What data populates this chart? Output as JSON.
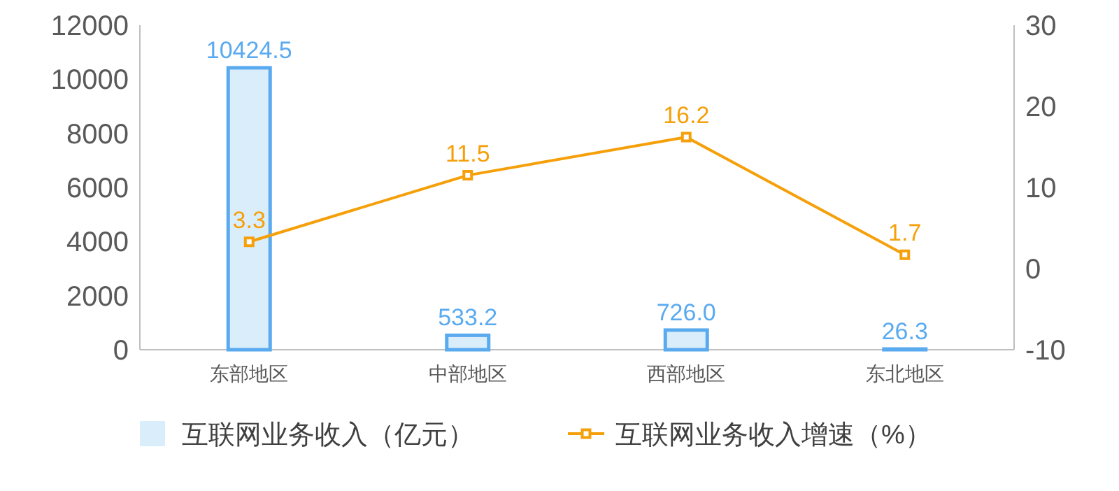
{
  "chart_data": {
    "type": "bar",
    "categories": [
      "东部地区",
      "中部地区",
      "西部地区",
      "东北地区"
    ],
    "series": [
      {
        "name": "互联网业务收入（亿元）",
        "color": "#d9edfb",
        "values": [
          10424.5,
          533.2,
          726.0,
          26.3
        ],
        "value_labels": [
          "10424.5",
          "533.2",
          "726.0",
          "26.3"
        ]
      },
      {
        "name": "互联网业务收入增速（%）",
        "type": "line",
        "axis": "y2",
        "color": "#f5a00a",
        "values": [
          3.3,
          11.5,
          16.2,
          1.7
        ],
        "marker": "square",
        "line_style": "solid"
      }
    ],
    "ylim": [
      0,
      12000
    ],
    "yticks": [
      0,
      2000,
      4000,
      6000,
      8000,
      10000,
      12000
    ],
    "y2lim": [
      -10,
      30
    ],
    "y2ticks": [
      -10,
      0,
      10,
      20,
      30
    ],
    "data_labels": true,
    "grid": false,
    "legend": "bottom"
  }
}
